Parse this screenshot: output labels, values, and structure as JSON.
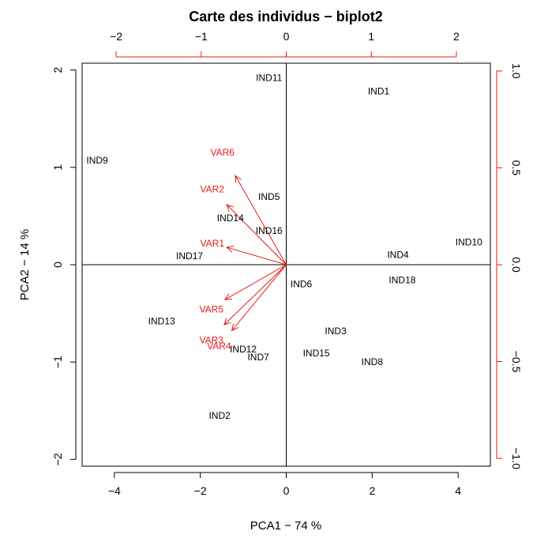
{
  "chart_data": {
    "type": "scatter",
    "title": "Carte des individus − biplot2",
    "xlabel": "PCA1 −  74 %",
    "ylabel": "PCA2 − 14 %",
    "xlim": [
      -4.75,
      4.75
    ],
    "ylim": [
      -2.07,
      2.07
    ],
    "x_ticks": [
      -4,
      -2,
      0,
      2,
      4
    ],
    "x_tick_labels": [
      "−4",
      "−2",
      "0",
      "2",
      "4"
    ],
    "y_ticks": [
      -2,
      -1,
      0,
      1,
      2
    ],
    "y_tick_labels": [
      "−2",
      "−1",
      "0",
      "1",
      "2"
    ],
    "top_xlim": [
      -2.4,
      2.4
    ],
    "top_ticks": [
      -2,
      -1,
      0,
      1,
      2
    ],
    "top_tick_labels": [
      "−2",
      "−1",
      "0",
      "1",
      "2"
    ],
    "right_ylim": [
      -1.04,
      1.04
    ],
    "right_ticks": [
      -1.0,
      -0.5,
      0.0,
      0.5,
      1.0
    ],
    "right_tick_labels": [
      "−1.0",
      "−0.5",
      "0.0",
      "0.5",
      "1.0"
    ],
    "reference_lines": {
      "x": 0,
      "y": 0
    },
    "individuals": [
      {
        "label": "IND1",
        "x": 2.15,
        "y": 1.78
      },
      {
        "label": "IND2",
        "x": -1.55,
        "y": -1.55
      },
      {
        "label": "IND3",
        "x": 1.15,
        "y": -0.68
      },
      {
        "label": "IND4",
        "x": 2.6,
        "y": 0.1
      },
      {
        "label": "IND5",
        "x": -0.4,
        "y": 0.7
      },
      {
        "label": "IND6",
        "x": 0.35,
        "y": -0.2
      },
      {
        "label": "IND7",
        "x": -0.65,
        "y": -0.95
      },
      {
        "label": "IND8",
        "x": 2.0,
        "y": -1.0
      },
      {
        "label": "IND9",
        "x": -4.4,
        "y": 1.07
      },
      {
        "label": "IND10",
        "x": 4.25,
        "y": 0.23
      },
      {
        "label": "IND11",
        "x": -0.4,
        "y": 1.92
      },
      {
        "label": "IND12",
        "x": -1.0,
        "y": -0.87
      },
      {
        "label": "IND13",
        "x": -2.9,
        "y": -0.58
      },
      {
        "label": "IND14",
        "x": -1.3,
        "y": 0.48
      },
      {
        "label": "IND15",
        "x": 0.7,
        "y": -0.91
      },
      {
        "label": "IND16",
        "x": -0.4,
        "y": 0.35
      },
      {
        "label": "IND17",
        "x": -2.25,
        "y": 0.09
      },
      {
        "label": "IND18",
        "x": 2.7,
        "y": -0.16
      }
    ],
    "variables": [
      {
        "label": "VAR1",
        "x": -0.7,
        "y": 0.09,
        "label_x": -0.87,
        "label_y": 0.11
      },
      {
        "label": "VAR2",
        "x": -0.7,
        "y": 0.31,
        "label_x": -0.87,
        "label_y": 0.39
      },
      {
        "label": "VAR3",
        "x": -0.73,
        "y": -0.31,
        "label_x": -0.88,
        "label_y": -0.39
      },
      {
        "label": "VAR4",
        "x": -0.64,
        "y": -0.34,
        "label_x": -0.79,
        "label_y": -0.42
      },
      {
        "label": "VAR5",
        "x": -0.72,
        "y": -0.18,
        "label_x": -0.88,
        "label_y": -0.23
      },
      {
        "label": "VAR6",
        "x": -0.6,
        "y": 0.46,
        "label_x": -0.75,
        "label_y": 0.58
      }
    ],
    "colors": {
      "individuals": "#000000",
      "variables": "#e41a1c",
      "axes": "#000000",
      "secondary_axes": "#e41a1c"
    }
  }
}
